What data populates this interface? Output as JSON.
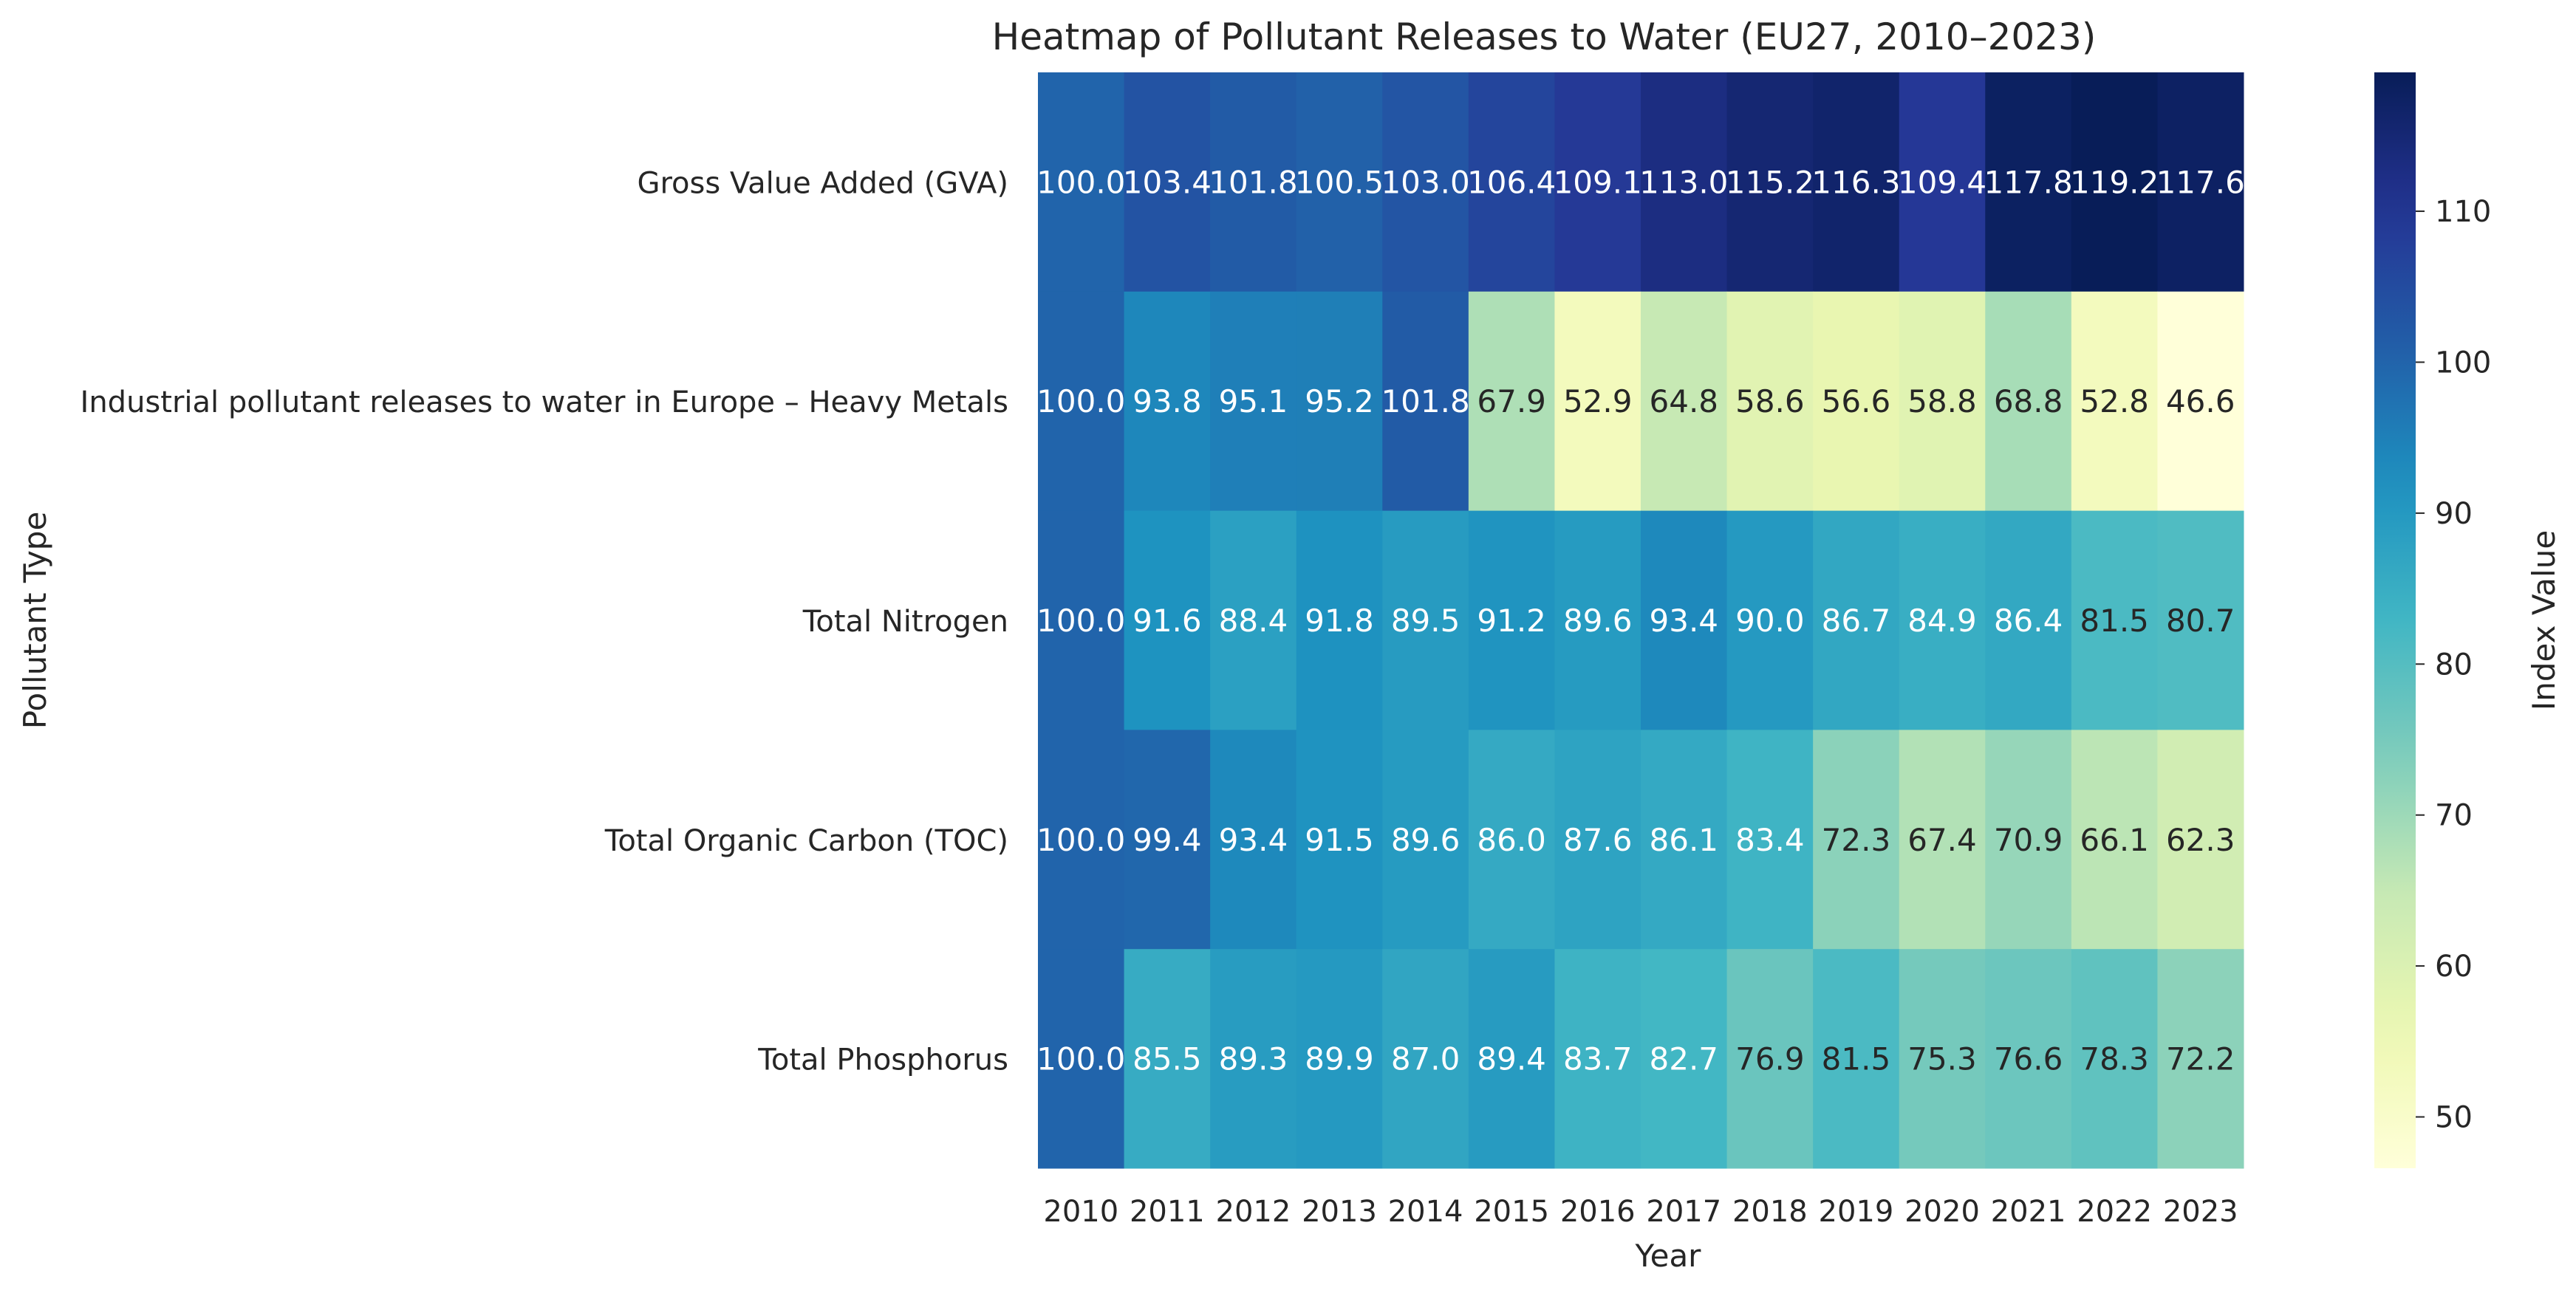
{
  "chart_data": {
    "type": "heatmap",
    "title": "Heatmap of Pollutant Releases to Water (EU27, 2010–2023)",
    "xlabel": "Year",
    "ylabel": "Pollutant Type",
    "x": [
      "2010",
      "2011",
      "2012",
      "2013",
      "2014",
      "2015",
      "2016",
      "2017",
      "2018",
      "2019",
      "2020",
      "2021",
      "2022",
      "2023"
    ],
    "y": [
      "Gross Value Added (GVA)",
      "Industrial pollutant releases to water in Europe – Heavy Metals",
      "Total Nitrogen",
      "Total Organic Carbon (TOC)",
      "Total Phosphorus"
    ],
    "values": [
      [
        100.0,
        103.4,
        101.8,
        100.5,
        103.0,
        106.4,
        109.1,
        113.0,
        115.2,
        116.3,
        109.4,
        117.8,
        119.2,
        117.6
      ],
      [
        100.0,
        93.8,
        95.1,
        95.2,
        101.8,
        67.9,
        52.9,
        64.8,
        58.6,
        56.6,
        58.8,
        68.8,
        52.8,
        46.6
      ],
      [
        100.0,
        91.6,
        88.4,
        91.8,
        89.5,
        91.2,
        89.6,
        93.4,
        90.0,
        86.7,
        84.9,
        86.4,
        81.5,
        80.7
      ],
      [
        100.0,
        99.4,
        93.4,
        91.5,
        89.6,
        86.0,
        87.6,
        86.1,
        83.4,
        72.3,
        67.4,
        70.9,
        66.1,
        62.3
      ],
      [
        100.0,
        85.5,
        89.3,
        89.9,
        87.0,
        89.4,
        83.7,
        82.7,
        76.9,
        81.5,
        75.3,
        76.6,
        78.3,
        72.2
      ]
    ],
    "value_format": "0.1f",
    "colormap": "YlGnBu",
    "colorbar": {
      "label": "Index Value",
      "range": [
        46.6,
        119.2
      ],
      "ticks": [
        50,
        60,
        70,
        80,
        90,
        100,
        110
      ]
    }
  }
}
